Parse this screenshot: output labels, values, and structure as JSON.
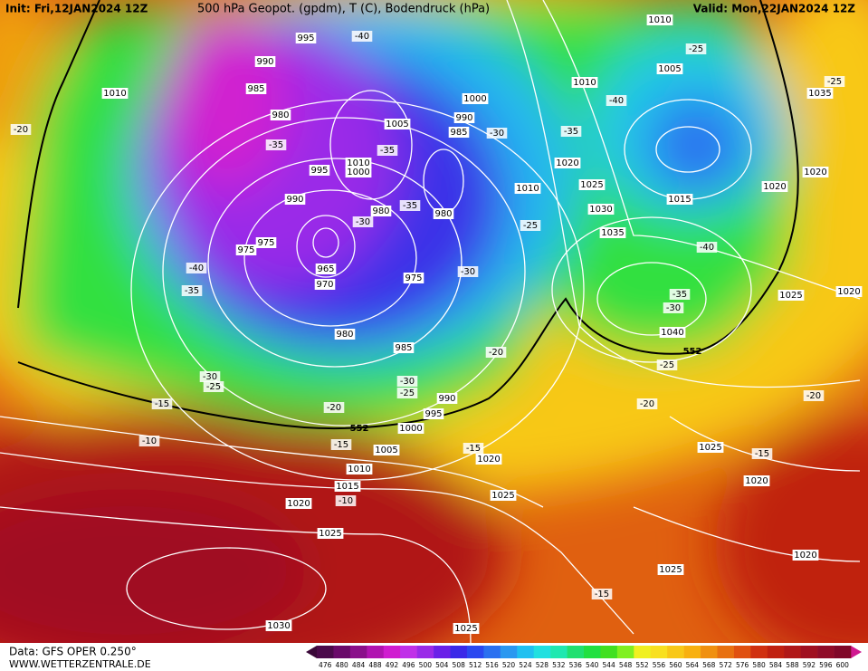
{
  "header": {
    "init": "Init: Fri,12JAN2024 12Z",
    "title": "500 hPa Geopot. (gpdm), T (C), Bodendruck (hPa)",
    "valid": "Valid: Mon,22JAN2024 12Z"
  },
  "pressure_labels": [
    "995",
    "990",
    "985",
    "980",
    "1010",
    "1005",
    "1000",
    "990",
    "985",
    "995",
    "1010",
    "1000",
    "990",
    "980",
    "980",
    "975",
    "975",
    "965",
    "970",
    "975",
    "980",
    "985",
    "990",
    "995",
    "1000",
    "1005",
    "1010",
    "1015",
    "1020",
    "1025",
    "1030",
    "1025",
    "1025",
    "1020",
    "1020",
    "1025",
    "1020",
    "1025",
    "1010",
    "1020",
    "1025",
    "1030",
    "1035",
    "1040",
    "1015",
    "1020",
    "1020",
    "1005",
    "1010",
    "1010",
    "1035",
    "1025",
    "1020"
  ],
  "temperature_labels": [
    "-40",
    "-20",
    "-35",
    "-30",
    "-35",
    "-40",
    "-25",
    "-25",
    "-35",
    "-35",
    "-30",
    "-25",
    "-40",
    "-35",
    "-30",
    "-40",
    "-35",
    "-30",
    "-20",
    "-25",
    "-30",
    "-25",
    "-30",
    "-25",
    "-15",
    "-20",
    "-20",
    "-20",
    "-10",
    "-15",
    "-15",
    "-15",
    "-10",
    "-15"
  ],
  "height_labels": [
    "552",
    "552"
  ],
  "colorbar": {
    "labels": [
      476,
      480,
      484,
      488,
      492,
      496,
      500,
      504,
      508,
      512,
      516,
      520,
      524,
      528,
      532,
      536,
      540,
      544,
      548,
      552,
      556,
      560,
      564,
      568,
      572,
      576,
      580,
      584,
      588,
      592,
      596,
      600
    ]
  },
  "footer": {
    "data": "Data: GFS OPER 0.250°",
    "website": "WWW.WETTERZENTRALE.DE"
  }
}
